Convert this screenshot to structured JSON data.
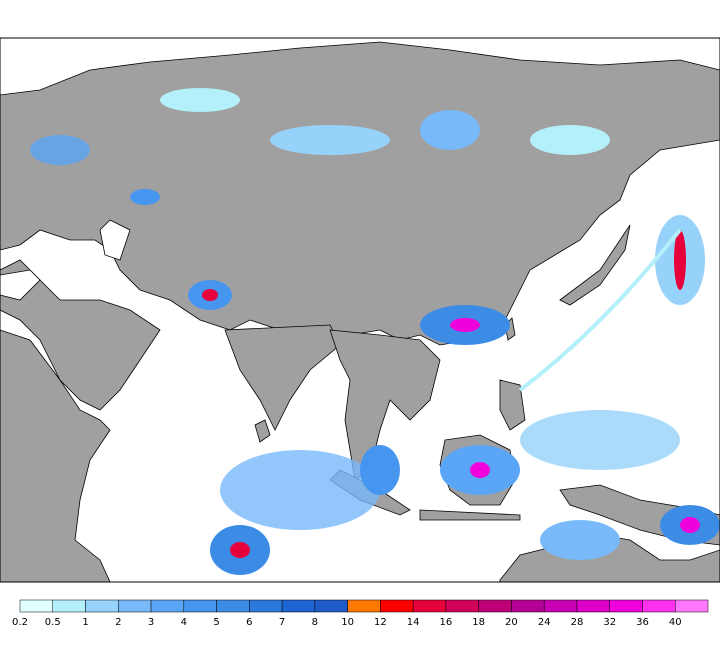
{
  "legend": {
    "labels": [
      0.2,
      0.5,
      1,
      2,
      3,
      4,
      5,
      6,
      7,
      8,
      10,
      12,
      14,
      16,
      18,
      20,
      24,
      28,
      32,
      36,
      40
    ],
    "colors": [
      "#e1ffff",
      "#b4f0fa",
      "#96d2fa",
      "#78b9fa",
      "#5aa5f5",
      "#4696f0",
      "#3c8ce6",
      "#2d78dc",
      "#1e64d2",
      "#1e5ac8",
      "#ff7800",
      "#ff0000",
      "#e6003c",
      "#d2005a",
      "#be0078",
      "#b40096",
      "#c800b4",
      "#dc00c8",
      "#f000dc",
      "#ff32f0",
      "#ff78ff"
    ]
  }
}
